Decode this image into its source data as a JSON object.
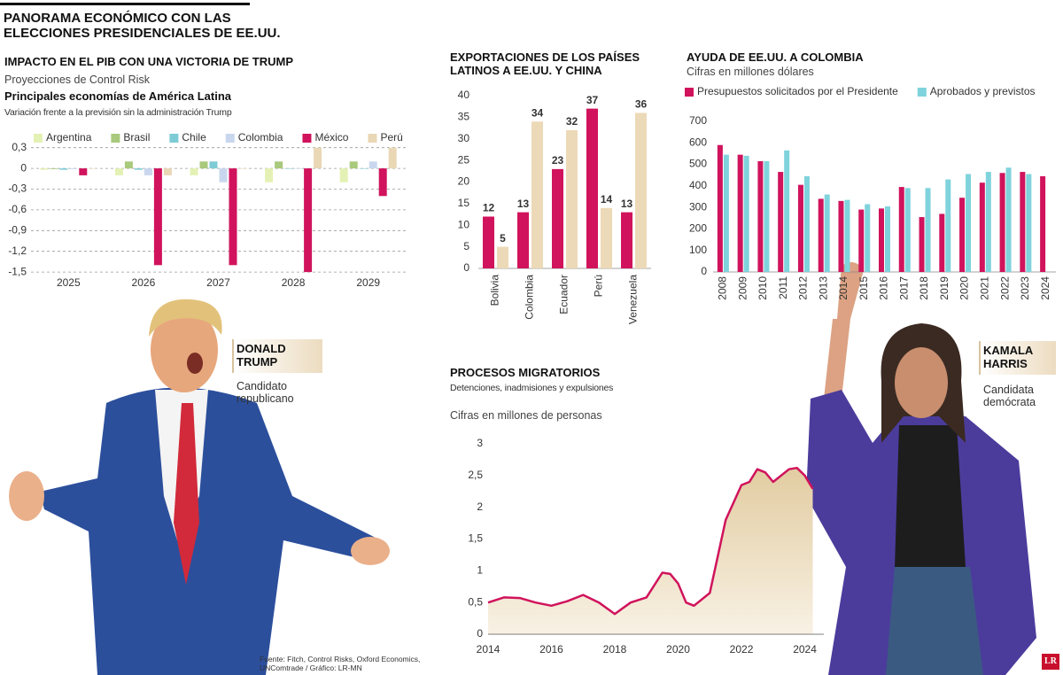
{
  "header": {
    "title_lines": [
      "PANORAMA ECONÓMICO CON LAS",
      "ELECCIONES PRESIDENCIALES DE EE.UU."
    ]
  },
  "chart_data": [
    {
      "type": "bar",
      "title": "IMPACTO EN EL PIB CON UNA VICTORIA DE TRUMP",
      "subtitle": "Proyecciones de Control Risk",
      "subheading": "Principales economías de América Latina",
      "note": "Variación frente a la previsión sin la administración Trump",
      "categories": [
        "2025",
        "2026",
        "2027",
        "2028",
        "2029"
      ],
      "series": [
        {
          "name": "Argentina",
          "color": "#e4f1b4",
          "values": [
            -0.02,
            -0.1,
            -0.1,
            -0.2,
            -0.2
          ]
        },
        {
          "name": "Brasil",
          "color": "#a9c97c",
          "values": [
            -0.01,
            0.1,
            0.1,
            0.1,
            0.1
          ]
        },
        {
          "name": "Chile",
          "color": "#7ecbd6",
          "values": [
            -0.02,
            -0.02,
            0.1,
            0,
            0
          ]
        },
        {
          "name": "Colombia",
          "color": "#c9d7ee",
          "values": [
            -0.01,
            -0.1,
            -0.2,
            0,
            0.1
          ]
        },
        {
          "name": "México",
          "color": "#d0135c",
          "values": [
            -0.1,
            -1.4,
            -1.4,
            -1.5,
            -0.4
          ]
        },
        {
          "name": "Perú",
          "color": "#e9d7b5",
          "values": [
            0,
            -0.1,
            0,
            0.3,
            0.3
          ]
        }
      ],
      "ylim": [
        -1.55,
        0.45
      ],
      "yticks": [
        {
          "value": 0.3,
          "label": "0,3"
        },
        0,
        {
          "value": -0.3,
          "label": "-0,3"
        },
        {
          "value": -0.6,
          "label": "-0,6"
        },
        {
          "value": -0.9,
          "label": "-0,9"
        },
        {
          "value": -1.2,
          "label": "-1,2"
        },
        {
          "value": -1.5,
          "label": "-1,5"
        }
      ],
      "grid": true,
      "legend": "top"
    },
    {
      "type": "bar",
      "title": "EXPORTACIONES DE LOS PAÍSES LATINOS A EE.UU. Y CHINA",
      "categories": [
        "Bolivia",
        "Colombia",
        "Ecuador",
        "Perú",
        "Venezuela"
      ],
      "series": [
        {
          "color": "#d0135c",
          "values": [
            12,
            13,
            23,
            37,
            13
          ]
        },
        {
          "color": "#ecd9b7",
          "values": [
            5,
            34,
            32,
            14,
            36
          ]
        }
      ],
      "ylim": [
        0,
        40
      ],
      "yticks": [
        0,
        5,
        10,
        15,
        20,
        25,
        30,
        35,
        40
      ],
      "grid": false,
      "show_values": true
    },
    {
      "type": "bar",
      "title": "AYUDA DE EE.UU. A COLOMBIA",
      "subtitle": "Cifras en millones dólares",
      "categories": [
        "2008",
        "2009",
        "2010",
        "2011",
        "2012",
        "2013",
        "2014",
        "2015",
        "2016",
        "2017",
        "2018",
        "2019",
        "2020",
        "2021",
        "2022",
        "2023",
        "2024"
      ],
      "series": [
        {
          "name": "Presupuestos solicitados por el Presidente",
          "color": "#d0135c",
          "values": [
            590,
            545,
            515,
            465,
            405,
            340,
            330,
            290,
            295,
            395,
            255,
            270,
            345,
            415,
            460,
            465,
            445
          ]
        },
        {
          "name": "Aprobados y previstos",
          "color": "#7fd3dc",
          "values": [
            545,
            540,
            515,
            565,
            445,
            360,
            335,
            315,
            305,
            390,
            390,
            430,
            455,
            465,
            485,
            455,
            null
          ]
        }
      ],
      "ylim": [
        0,
        700
      ],
      "yticks": [
        0,
        100,
        200,
        300,
        400,
        500,
        600,
        700
      ],
      "grid": false,
      "legend": "top"
    },
    {
      "type": "area",
      "title": "PROCESOS MIGRATORIOS",
      "subtitle": "Detenciones, inadmisiones y expulsiones",
      "y_label": "Cifras en millones de personas",
      "x": [
        2014,
        2014.5,
        2015,
        2015.5,
        2016,
        2016.5,
        2017,
        2017.5,
        2018,
        2018.5,
        2019,
        2019.5,
        2019.75,
        2020,
        2020.25,
        2020.5,
        2021,
        2021.5,
        2022,
        2022.25,
        2022.5,
        2022.75,
        2023,
        2023.5,
        2023.75,
        2024,
        2024.25
      ],
      "values": [
        0.5,
        0.58,
        0.57,
        0.5,
        0.45,
        0.52,
        0.62,
        0.5,
        0.32,
        0.5,
        0.58,
        0.97,
        0.95,
        0.8,
        0.5,
        0.45,
        0.65,
        1.8,
        2.35,
        2.4,
        2.6,
        2.55,
        2.4,
        2.6,
        2.62,
        2.5,
        2.29
      ],
      "color": "#d0135c",
      "fill_color": "#e6d2ac",
      "xlim": [
        2014,
        2024.6
      ],
      "xticks": [
        2014,
        2016,
        2018,
        2020,
        2022,
        2024
      ],
      "ylim": [
        0,
        3
      ],
      "yticks": [
        0,
        {
          "value": 0.5,
          "label": "0,5"
        },
        1,
        {
          "value": 1.5,
          "label": "1,5"
        },
        2,
        {
          "value": 2.5,
          "label": "2,5"
        },
        3
      ],
      "grid": false
    }
  ],
  "candidates": [
    {
      "name": "DONALD TRUMP",
      "role": "Candidato republicano"
    },
    {
      "name": "KAMALA HARRIS",
      "role": "Candidata demócrata"
    }
  ],
  "source": "Fuente: Fitch, Control Risks, Oxford Economics, UNComtrade / Gráfico: LR-MN",
  "logo": "LR"
}
